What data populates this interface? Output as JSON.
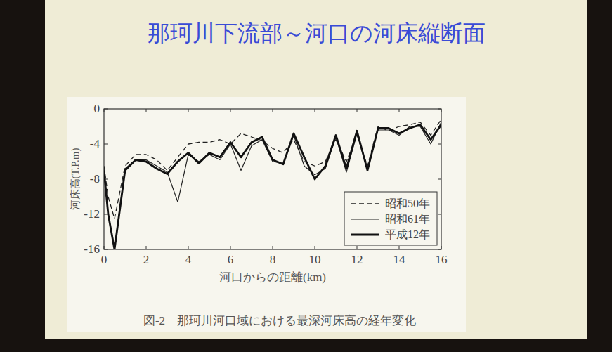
{
  "chart_data": {
    "type": "line",
    "title": "那珂川下流部～河口の河床縦断面",
    "caption": "図-2　那珂川河口域における最深河床高の経年変化",
    "x_label": "河口からの距離(km)",
    "y_label": "河床高(T.P.m)",
    "x": [
      0,
      0.2,
      0.5,
      1,
      1.5,
      2,
      2.5,
      3,
      3.5,
      4,
      4.5,
      5,
      5.5,
      6,
      6.5,
      7,
      7.5,
      8,
      8.5,
      9,
      9.5,
      10,
      10.5,
      11,
      11.5,
      12,
      12.5,
      13,
      13.5,
      14,
      14.5,
      15,
      15.5,
      16
    ],
    "series": [
      {
        "name": "昭和50年",
        "color": "#222222",
        "line_style": "dashed",
        "values": [
          -6.5,
          -10,
          -12.5,
          -6.5,
          -5.2,
          -5.2,
          -5.8,
          -7,
          -5.5,
          -4,
          -3.8,
          -3.8,
          -3.5,
          -4,
          -2.8,
          -3.2,
          -3.6,
          -4.5,
          -5,
          -3.5,
          -6,
          -6.5,
          -6,
          -3.5,
          -6,
          -3,
          -6.5,
          -2,
          -2.5,
          -2,
          -1.8,
          -1.5,
          -3,
          -1.2
        ]
      },
      {
        "name": "昭和61年",
        "color": "#222222",
        "line_style": "solid",
        "values": [
          -7,
          -12,
          -15.8,
          -6.8,
          -5.8,
          -5.8,
          -6.5,
          -7.2,
          -10.6,
          -5.2,
          -6,
          -5.2,
          -5.8,
          -4,
          -7,
          -4.2,
          -3.5,
          -6,
          -6.2,
          -3,
          -6.5,
          -7.5,
          -6.8,
          -3.2,
          -7.2,
          -2.8,
          -6.8,
          -2.4,
          -2.4,
          -3,
          -2,
          -2,
          -4,
          -1.5
        ]
      },
      {
        "name": "平成12年",
        "color": "#111111",
        "line_style": "solid",
        "values": [
          -7,
          -12,
          -16,
          -7,
          -5.8,
          -6,
          -6.8,
          -7.4,
          -6,
          -5,
          -6.2,
          -5,
          -5.5,
          -3.8,
          -5.5,
          -3.8,
          -3.2,
          -5.8,
          -6.3,
          -2.8,
          -5.5,
          -8,
          -6.5,
          -3,
          -6.8,
          -2.5,
          -7,
          -2.2,
          -2.2,
          -2.8,
          -2.2,
          -1.8,
          -3.5,
          -1.8
        ]
      }
    ],
    "xlim": [
      0,
      16
    ],
    "ylim": [
      -16,
      0
    ],
    "xticks": [
      0,
      2,
      4,
      6,
      8,
      10,
      12,
      14,
      16
    ],
    "yticks": [
      0,
      -4,
      -8,
      -12,
      -16
    ],
    "legend": "lower right",
    "grid": false
  }
}
